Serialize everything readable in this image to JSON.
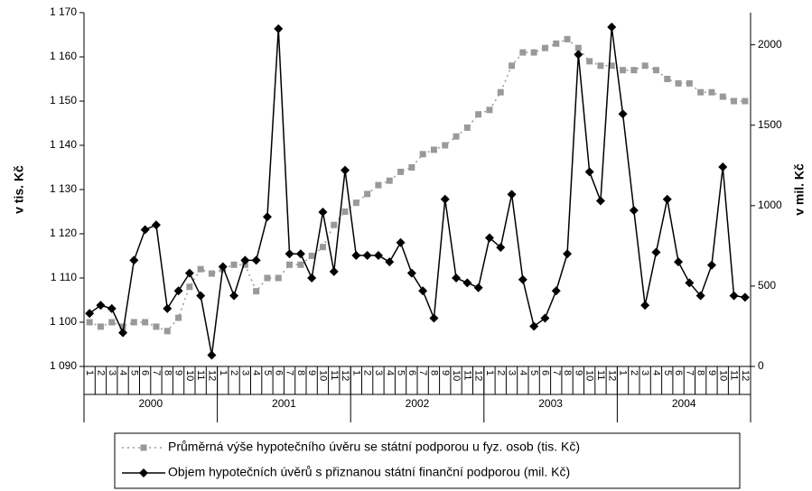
{
  "chart_data": {
    "type": "line",
    "y_label": "v tis. Kč",
    "y2_label": "v mil. Kč",
    "categories": [
      "1",
      "2",
      "3",
      "4",
      "5",
      "6",
      "7",
      "8",
      "9",
      "10",
      "11",
      "12",
      "1",
      "2",
      "3",
      "4",
      "5",
      "6",
      "7",
      "8",
      "9",
      "10",
      "11",
      "12",
      "1",
      "2",
      "3",
      "4",
      "5",
      "6",
      "7",
      "8",
      "9",
      "10",
      "11",
      "12",
      "1",
      "2",
      "3",
      "4",
      "5",
      "6",
      "7",
      "8",
      "9",
      "10",
      "11",
      "12",
      "1",
      "2",
      "3",
      "4",
      "5",
      "6",
      "7",
      "8",
      "9",
      "10",
      "11",
      "12"
    ],
    "groups": [
      "2000",
      "2001",
      "2002",
      "2003",
      "2004"
    ],
    "ylim": [
      1090,
      1170
    ],
    "yticks": [
      {
        "value": 1090,
        "label": "1 090"
      },
      {
        "value": 1100,
        "label": "1 100"
      },
      {
        "value": 1110,
        "label": "1 110"
      },
      {
        "value": 1120,
        "label": "1 120"
      },
      {
        "value": 1130,
        "label": "1 130"
      },
      {
        "value": 1140,
        "label": "1 140"
      },
      {
        "value": 1150,
        "label": "1 150"
      },
      {
        "value": 1160,
        "label": "1 160"
      },
      {
        "value": 1170,
        "label": "1 170"
      }
    ],
    "y2lim": [
      0,
      2200
    ],
    "y2ticks": [
      0,
      500,
      1000,
      1500,
      2000
    ],
    "series": [
      {
        "name": "Průměrná výše hypotečního úvěru se státní podporou u fyz. osob (tis. Kč)",
        "color": "#999999",
        "marker": "square",
        "dash": true,
        "values": [
          1100,
          1099,
          1100,
          1099,
          1100,
          1100,
          1099,
          1098,
          1101,
          1108,
          1112,
          1111,
          1112,
          1113,
          1113,
          1107,
          1110,
          1110,
          1113,
          1113,
          1115,
          1117,
          1122,
          1125,
          1127,
          1129,
          1131,
          1132,
          1134,
          1135,
          1138,
          1139,
          1140,
          1142,
          1144,
          1147,
          1148,
          1152,
          1158,
          1161,
          1161,
          1162,
          1163,
          1164,
          1162,
          1159,
          1158,
          1158,
          1157,
          1157,
          1158,
          1157,
          1155,
          1154,
          1154,
          1152,
          1152,
          1151,
          1150,
          1150
        ]
      },
      {
        "name": "Objem hypotečních úvěrů s přiznanou státní finanční podporou (mil. Kč)",
        "color": "#000000",
        "marker": "diamond",
        "dash": false,
        "axis": "y2",
        "values": [
          330,
          380,
          360,
          210,
          660,
          850,
          880,
          360,
          470,
          580,
          440,
          70,
          620,
          440,
          660,
          660,
          930,
          2100,
          700,
          700,
          550,
          960,
          590,
          1220,
          690,
          690,
          690,
          650,
          770,
          580,
          470,
          300,
          1040,
          550,
          520,
          490,
          800,
          740,
          1070,
          540,
          250,
          300,
          470,
          700,
          1940,
          1210,
          1030,
          2110,
          1570,
          970,
          380,
          710,
          1040,
          650,
          520,
          440,
          630,
          1240,
          440,
          430
        ]
      }
    ]
  }
}
